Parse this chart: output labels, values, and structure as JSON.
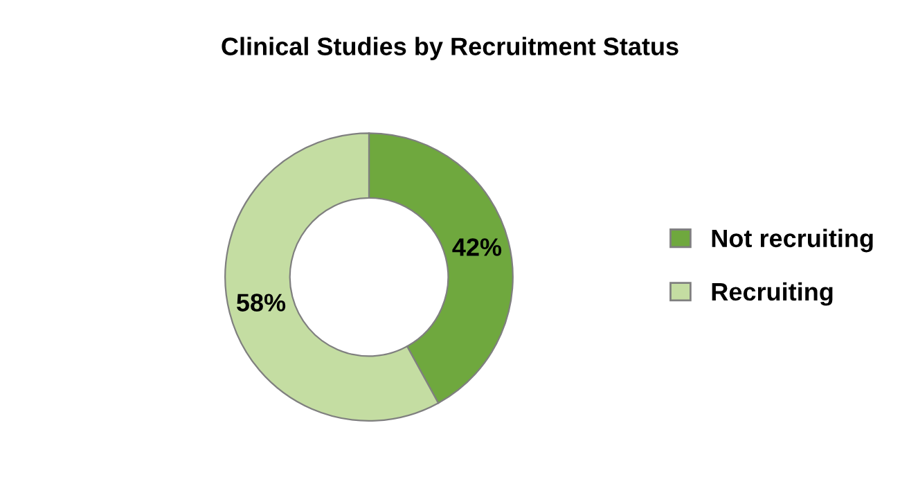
{
  "chart_data": {
    "type": "donut",
    "title": "Clinical Studies by Recruitment Status",
    "categories": [
      "Not recruiting",
      "Recruiting"
    ],
    "values": [
      42,
      58
    ],
    "colors": [
      "#6fa83e",
      "#c4dda2"
    ],
    "value_labels": [
      "42%",
      "58%"
    ],
    "legend": "right"
  }
}
